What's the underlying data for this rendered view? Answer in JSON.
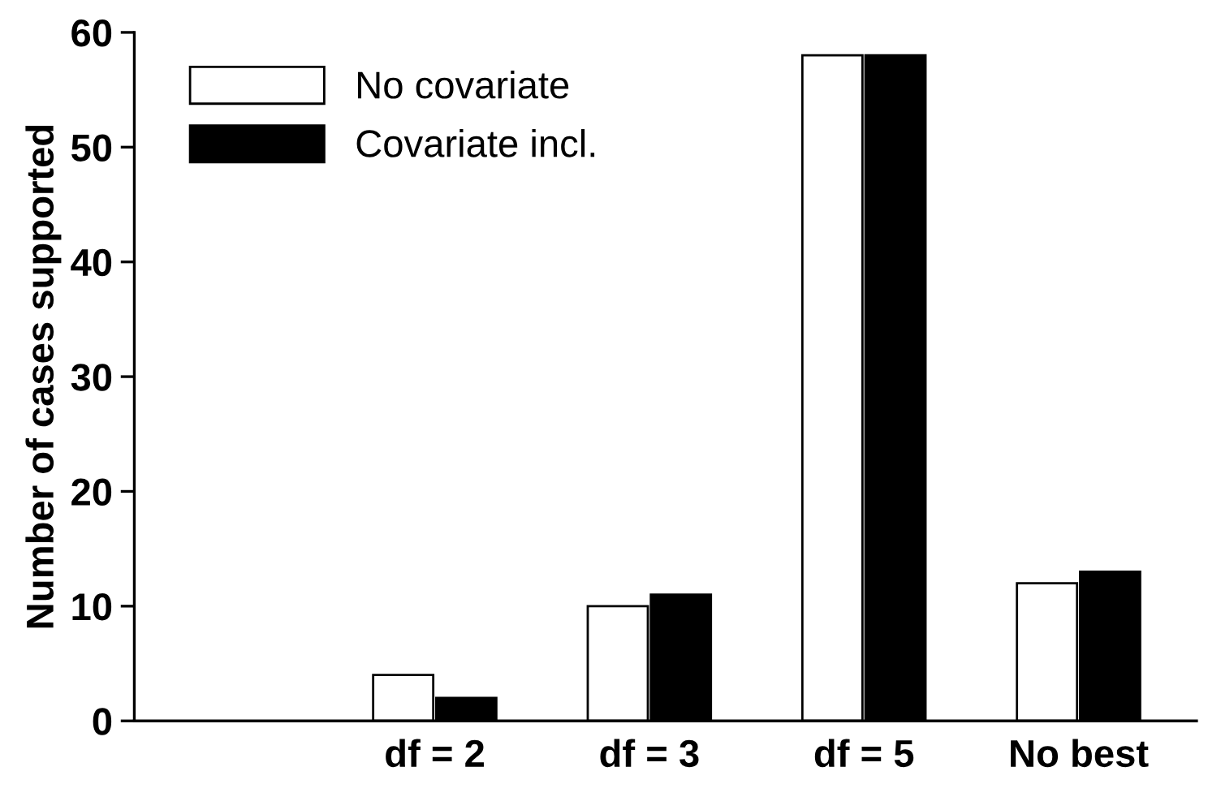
{
  "chart_data": {
    "type": "bar",
    "ylabel": "Number of cases supported",
    "categories": [
      "df = 2",
      "df = 3",
      "df = 5",
      "No best"
    ],
    "series": [
      {
        "name": "No covariate",
        "color": "#ffffff",
        "values": [
          4,
          10,
          58,
          12
        ]
      },
      {
        "name": "Covariate incl.",
        "color": "#000000",
        "values": [
          2,
          11,
          58,
          13
        ]
      }
    ],
    "ylim": [
      0,
      60
    ],
    "yticks": [
      0,
      10,
      20,
      30,
      40,
      50,
      60
    ],
    "grid": false,
    "legend": "top left"
  }
}
